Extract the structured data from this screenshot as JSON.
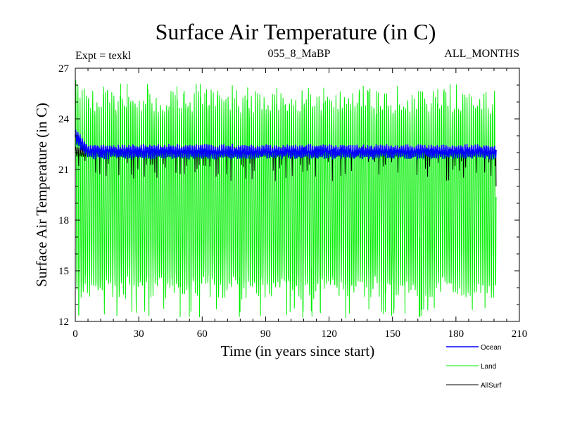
{
  "chart_data": {
    "type": "line",
    "title": "Surface Air Temperature (in C)",
    "subtitle_left": "Expt = texkl",
    "subtitle_center": "055_8_MaBP",
    "subtitle_right": "ALL_MONTHS",
    "xlabel": "Time (in years since start)",
    "ylabel": "Surface Air Temperature (in C)",
    "xlim": [
      0,
      210
    ],
    "ylim": [
      12,
      27
    ],
    "xticks": [
      0,
      30,
      60,
      90,
      120,
      150,
      180,
      210
    ],
    "yticks": [
      12,
      15,
      18,
      21,
      24,
      27
    ],
    "legend_position": "bottom-right",
    "series": [
      {
        "name": "Ocean",
        "color": "#0000ff",
        "mean": 22.05,
        "monthly_range": [
          21.6,
          22.6
        ],
        "start_value": 23.0
      },
      {
        "name": "Land",
        "color": "#00ee00",
        "monthly_min_typical": 14.0,
        "monthly_max_typical": 25.0,
        "min_observed": 12.2,
        "max_observed": 26.1
      },
      {
        "name": "AllSurf",
        "color": "#000000",
        "low_excursion_min": 20.3,
        "end_value": 20.0
      }
    ],
    "x_end": 199
  }
}
